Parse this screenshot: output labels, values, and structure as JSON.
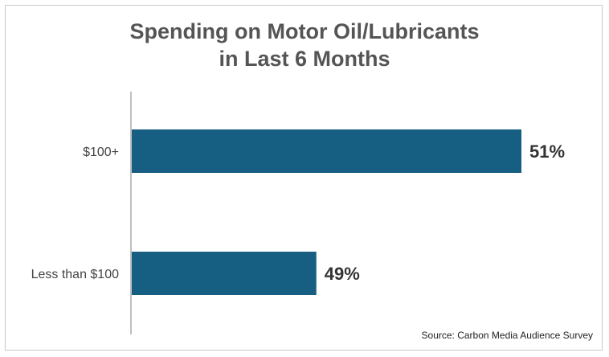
{
  "title_lines": [
    "Spending on Motor Oil/Lubricants",
    "in Last 6 Months"
  ],
  "source": "Source: Carbon Media Audience Survey",
  "colors": {
    "bar": "#165e82",
    "axis": "#bfbfbf",
    "category_label": "#444444",
    "value_label": "#333333"
  },
  "chart_data": {
    "type": "bar",
    "orientation": "horizontal",
    "title": "Spending on Motor Oil/Lubricants in Last 6 Months",
    "categories": [
      "$100+",
      "Less than $100"
    ],
    "values": [
      51,
      49
    ],
    "value_labels": [
      "51%",
      "49%"
    ],
    "unit": "%",
    "xlim": [
      0,
      53
    ],
    "grid": false,
    "legend": "none"
  }
}
